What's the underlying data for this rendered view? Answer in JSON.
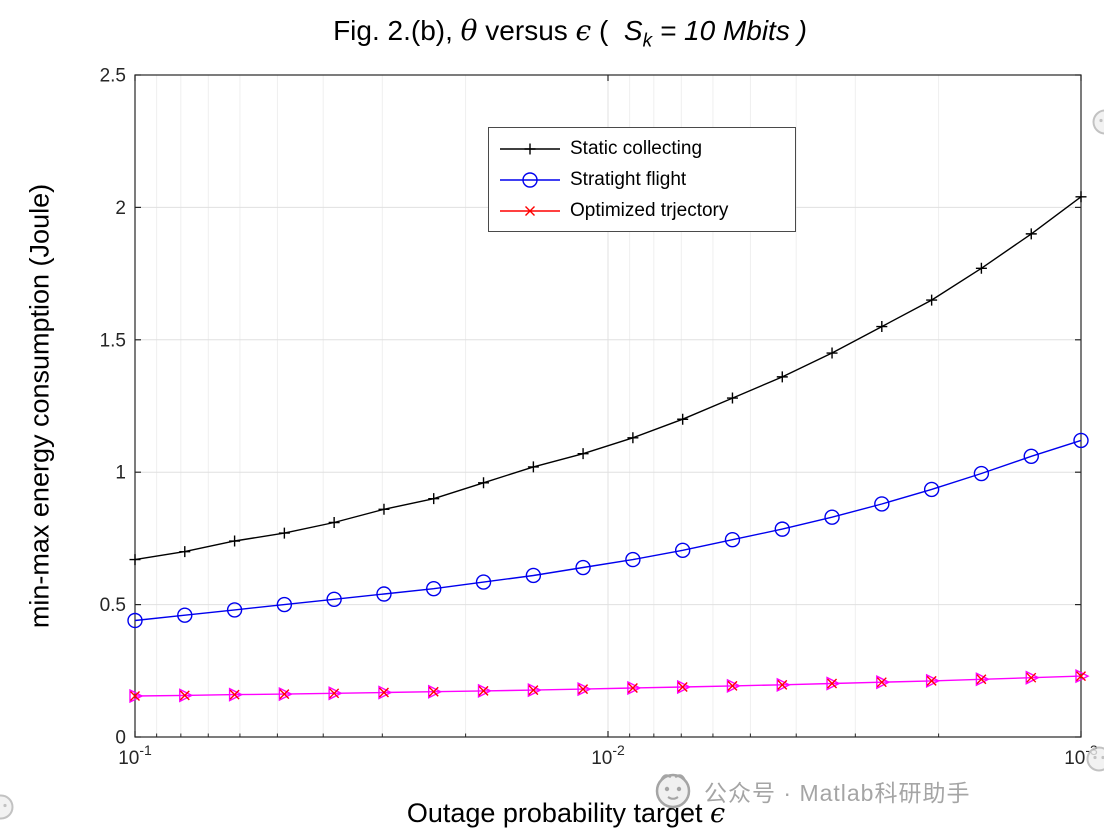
{
  "title": {
    "prefix": "Fig. 2.(b), ",
    "theta": "θ",
    "versus": " versus ",
    "epsilon": "ϵ",
    "paren": " (  ",
    "svar": "S",
    "ssub": "k",
    "suffix": " = 10 Mbits )"
  },
  "axes": {
    "xlabel": {
      "text": "Outage probability target ",
      "symbol": "ϵ"
    },
    "ylabel": "min-max energy consumption (Joule)"
  },
  "legend": {
    "items": [
      {
        "label": "Static collecting",
        "color": "#000000",
        "marker": "plus"
      },
      {
        "label": "Stratight flight",
        "color": "#0000ee",
        "marker": "circle"
      },
      {
        "label": "Optimized trjectory",
        "color": "#ff0000",
        "marker": "x"
      }
    ]
  },
  "watermark": {
    "text": "公众号 · Matlab科研助手"
  },
  "chart_data": {
    "type": "line",
    "title": "Fig. 2.(b), θ versus ϵ ( S_k = 10 Mbits )",
    "xlabel": "Outage probability target ϵ",
    "ylabel": "min-max energy consumption (Joule)",
    "x_scale": "log10-reversed",
    "xlim": [
      0.1,
      0.001
    ],
    "ylim": [
      0,
      2.5
    ],
    "grid": true,
    "y_ticks": [
      0,
      0.5,
      1,
      1.5,
      2,
      2.5
    ],
    "x_ticks": [
      {
        "value": 0.1,
        "exp": "-1"
      },
      {
        "value": 0.01,
        "exp": "-2"
      },
      {
        "value": 0.001,
        "exp": "-3"
      }
    ],
    "x": [
      0.1,
      0.07848,
      0.06158,
      0.04833,
      0.03793,
      0.02976,
      0.02336,
      0.01833,
      0.01438,
      0.01129,
      0.008859,
      0.006952,
      0.005456,
      0.004281,
      0.00336,
      0.002637,
      0.002069,
      0.001624,
      0.001274,
      0.001
    ],
    "series": [
      {
        "name": "Static collecting",
        "color": "#000000",
        "marker": "plus",
        "values": [
          0.67,
          0.7,
          0.74,
          0.77,
          0.81,
          0.86,
          0.9,
          0.96,
          1.02,
          1.07,
          1.13,
          1.2,
          1.28,
          1.36,
          1.45,
          1.55,
          1.65,
          1.77,
          1.9,
          2.04
        ]
      },
      {
        "name": "Stratight flight",
        "color": "#0000ee",
        "marker": "circle",
        "values": [
          0.44,
          0.46,
          0.48,
          0.5,
          0.52,
          0.54,
          0.56,
          0.585,
          0.61,
          0.64,
          0.67,
          0.705,
          0.745,
          0.785,
          0.83,
          0.88,
          0.935,
          0.995,
          1.06,
          1.12
        ]
      },
      {
        "name": "Optimized trjectory",
        "color": "#ff00ff",
        "marker": "triangle-right",
        "marker2": "x",
        "marker2_color": "#ff0000",
        "values": [
          0.155,
          0.157,
          0.16,
          0.162,
          0.165,
          0.168,
          0.171,
          0.174,
          0.177,
          0.181,
          0.185,
          0.189,
          0.193,
          0.197,
          0.202,
          0.207,
          0.212,
          0.218,
          0.224,
          0.23
        ]
      }
    ]
  }
}
